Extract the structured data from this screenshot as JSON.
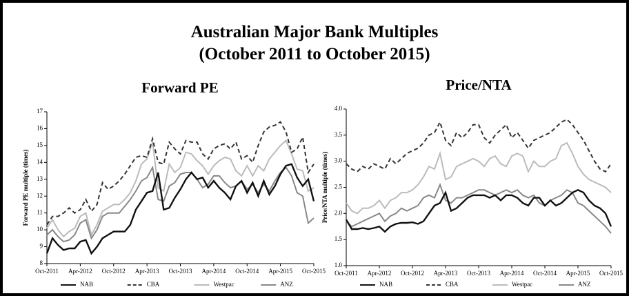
{
  "header": {
    "title": "Australian Major Bank Multiples",
    "subtitle": "(October 2011 to October 2015)"
  },
  "chart_data": [
    {
      "type": "line",
      "title": "Forward PE",
      "y_label": "Forward PE multiple (times)",
      "categories": [
        "Oct-2011",
        null,
        null,
        null,
        null,
        null,
        "Apr-2012",
        null,
        null,
        null,
        null,
        null,
        "Oct-2012",
        null,
        null,
        null,
        null,
        null,
        "Apr-2013",
        null,
        null,
        null,
        null,
        null,
        "Oct-2013",
        null,
        null,
        null,
        null,
        null,
        "Apr-2014",
        null,
        null,
        null,
        null,
        null,
        "Oct-2014",
        null,
        null,
        null,
        null,
        null,
        "Apr-2015",
        null,
        null,
        null,
        null,
        null,
        "Oct-2015"
      ],
      "ylim": [
        8,
        17
      ],
      "yticks": [
        8,
        9,
        10,
        11,
        12,
        13,
        14,
        15,
        16,
        17
      ],
      "series": [
        {
          "name": "NAB",
          "color": "#111111",
          "dash": false,
          "values": [
            8.6,
            9.5,
            9.1,
            8.8,
            8.9,
            8.9,
            9.3,
            9.4,
            8.6,
            9.0,
            9.5,
            9.7,
            9.9,
            9.9,
            9.9,
            10.3,
            11.2,
            11.7,
            12.2,
            12.3,
            13.4,
            11.2,
            11.3,
            11.9,
            12.4,
            13.0,
            13.4,
            13.0,
            13.1,
            12.5,
            12.9,
            12.5,
            12.2,
            11.8,
            12.6,
            12.9,
            12.2,
            12.8,
            12.0,
            12.9,
            12.1,
            12.6,
            13.3,
            13.8,
            13.9,
            13.1,
            12.6,
            13.0,
            11.7
          ]
        },
        {
          "name": "CBA",
          "color": "#333333",
          "dash": true,
          "values": [
            10.3,
            10.8,
            10.8,
            11.0,
            11.3,
            11.0,
            11.2,
            11.8,
            11.1,
            11.5,
            12.8,
            12.4,
            12.6,
            12.9,
            13.3,
            13.8,
            14.3,
            14.4,
            14.3,
            15.4,
            14.0,
            13.9,
            15.2,
            14.8,
            14.5,
            15.3,
            15.2,
            15.2,
            14.5,
            14.2,
            14.8,
            15.0,
            15.1,
            14.8,
            15.2,
            14.2,
            14.4,
            14.0,
            15.0,
            15.8,
            16.1,
            16.2,
            16.4,
            15.8,
            14.6,
            14.8,
            15.5,
            13.4,
            13.9
          ]
        },
        {
          "name": "Westpac",
          "color": "#bbbbbb",
          "dash": false,
          "values": [
            10.1,
            10.6,
            10.0,
            9.6,
            9.9,
            10.1,
            10.8,
            11.0,
            9.7,
            10.3,
            11.1,
            11.3,
            11.5,
            11.5,
            11.8,
            12.2,
            12.9,
            13.9,
            14.2,
            15.2,
            12.5,
            12.3,
            13.9,
            13.4,
            13.7,
            14.6,
            14.5,
            14.1,
            13.8,
            13.3,
            13.8,
            14.1,
            14.3,
            14.2,
            13.5,
            13.2,
            13.8,
            13.2,
            13.8,
            13.5,
            14.2,
            14.6,
            15.0,
            15.3,
            14.5,
            13.6,
            13.5,
            12.3,
            12.5
          ]
        },
        {
          "name": "ANZ",
          "color": "#888888",
          "dash": false,
          "values": [
            9.7,
            10.0,
            9.6,
            9.3,
            9.4,
            9.7,
            10.4,
            10.6,
            9.5,
            10.0,
            10.8,
            11.0,
            11.0,
            11.0,
            11.4,
            11.8,
            12.3,
            12.9,
            13.1,
            13.7,
            11.8,
            11.7,
            12.6,
            12.8,
            13.3,
            13.4,
            13.4,
            13.0,
            12.5,
            12.7,
            13.2,
            13.2,
            12.8,
            12.5,
            12.6,
            12.9,
            12.4,
            12.7,
            12.2,
            12.7,
            12.3,
            12.9,
            13.4,
            13.7,
            13.2,
            12.2,
            12.0,
            10.4,
            10.7
          ]
        }
      ]
    },
    {
      "type": "line",
      "title": "Price/NTA",
      "y_label": "Price/NTA multiple (times)",
      "categories": [
        "Oct-2011",
        null,
        null,
        null,
        null,
        null,
        "Apr-2012",
        null,
        null,
        null,
        null,
        null,
        "Oct-2012",
        null,
        null,
        null,
        null,
        null,
        "Apr-2013",
        null,
        null,
        null,
        null,
        null,
        "Oct-2013",
        null,
        null,
        null,
        null,
        null,
        "Apr-2014",
        null,
        null,
        null,
        null,
        null,
        "Oct-2014",
        null,
        null,
        null,
        null,
        null,
        "Apr-2015",
        null,
        null,
        null,
        null,
        null,
        "Oct-2015"
      ],
      "ylim": [
        1.0,
        4.0
      ],
      "yticks": [
        {
          "value": 1.0,
          "label": "1.0"
        },
        1.5,
        {
          "value": 2.0,
          "label": "2.0"
        },
        2.5,
        {
          "value": 3.0,
          "label": "3.0"
        },
        3.5,
        {
          "value": 4.0,
          "label": "4.0"
        }
      ],
      "series": [
        {
          "name": "NAB",
          "color": "#111111",
          "dash": false,
          "values": [
            1.88,
            1.7,
            1.7,
            1.72,
            1.7,
            1.72,
            1.75,
            1.65,
            1.75,
            1.8,
            1.82,
            1.82,
            1.83,
            1.8,
            1.85,
            2.0,
            2.15,
            2.2,
            2.4,
            2.05,
            2.1,
            2.2,
            2.3,
            2.35,
            2.35,
            2.35,
            2.3,
            2.35,
            2.25,
            2.35,
            2.35,
            2.3,
            2.2,
            2.15,
            2.3,
            2.3,
            2.15,
            2.25,
            2.15,
            2.2,
            2.3,
            2.4,
            2.45,
            2.4,
            2.25,
            2.15,
            2.1,
            2.0,
            1.75
          ]
        },
        {
          "name": "CBA",
          "color": "#333333",
          "dash": true,
          "values": [
            2.95,
            2.85,
            2.8,
            2.9,
            2.85,
            2.95,
            2.9,
            2.85,
            3.05,
            2.95,
            3.05,
            3.15,
            3.2,
            3.25,
            3.35,
            3.5,
            3.55,
            3.75,
            3.4,
            3.3,
            3.55,
            3.45,
            3.55,
            3.7,
            3.7,
            3.45,
            3.35,
            3.5,
            3.6,
            3.7,
            3.45,
            3.55,
            3.4,
            3.25,
            3.4,
            3.45,
            3.5,
            3.55,
            3.65,
            3.75,
            3.8,
            3.7,
            3.55,
            3.4,
            3.2,
            3.0,
            2.85,
            2.8,
            2.95
          ]
        },
        {
          "name": "Westpac",
          "color": "#bbbbbb",
          "dash": false,
          "values": [
            2.2,
            2.05,
            2.0,
            2.1,
            2.1,
            2.15,
            2.25,
            2.1,
            2.25,
            2.3,
            2.4,
            2.4,
            2.45,
            2.55,
            2.7,
            2.9,
            2.85,
            3.15,
            2.65,
            2.7,
            2.9,
            2.95,
            3.0,
            3.05,
            3.0,
            2.9,
            3.05,
            3.1,
            2.95,
            2.9,
            3.1,
            3.15,
            3.1,
            2.8,
            3.0,
            2.9,
            2.9,
            3.0,
            3.05,
            3.3,
            3.35,
            3.15,
            2.9,
            2.75,
            2.65,
            2.6,
            2.55,
            2.5,
            2.4
          ]
        },
        {
          "name": "ANZ",
          "color": "#888888",
          "dash": false,
          "values": [
            1.85,
            1.75,
            1.8,
            1.85,
            1.9,
            1.95,
            2.0,
            1.85,
            1.95,
            2.0,
            2.1,
            2.05,
            2.1,
            2.15,
            2.3,
            2.35,
            2.3,
            2.55,
            2.25,
            2.2,
            2.3,
            2.3,
            2.35,
            2.4,
            2.45,
            2.45,
            2.4,
            2.35,
            2.4,
            2.45,
            2.4,
            2.45,
            2.35,
            2.3,
            2.35,
            2.2,
            2.15,
            2.25,
            2.3,
            2.35,
            2.45,
            2.4,
            2.2,
            2.15,
            2.05,
            1.95,
            1.85,
            1.75,
            1.62
          ]
        }
      ]
    }
  ]
}
